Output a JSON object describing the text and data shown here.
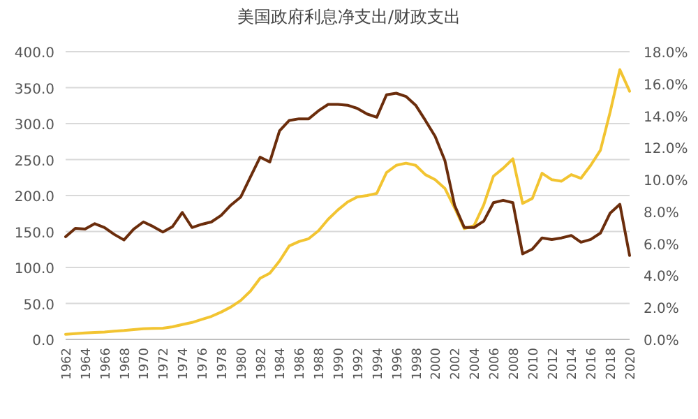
{
  "chart_data": {
    "type": "line",
    "title": "美国政府利息净支出/财政支出",
    "categories": [
      "1962",
      null,
      "1964",
      null,
      "1966",
      null,
      "1968",
      null,
      "1970",
      null,
      "1972",
      null,
      "1974",
      null,
      "1976",
      null,
      "1978",
      null,
      "1980",
      null,
      "1982",
      null,
      "1984",
      null,
      "1986",
      null,
      "1988",
      null,
      "1990",
      null,
      "1992",
      null,
      "1994",
      null,
      "1996",
      null,
      "1998",
      null,
      "2000",
      null,
      "2002",
      null,
      "2004",
      null,
      "2006",
      null,
      "2008",
      null,
      "2010",
      null,
      "2012",
      null,
      "2014",
      null,
      "2016",
      null,
      "2018",
      null,
      "2020"
    ],
    "series": [
      {
        "color": "#f2c431",
        "values": [
          7.1,
          8,
          9,
          9.7,
          10.3,
          11.5,
          12.3,
          13.6,
          14.9,
          15.2,
          15.5,
          17.5,
          20.7,
          23.5,
          27.8,
          32,
          38,
          45,
          54,
          67,
          85,
          92,
          109,
          130,
          136,
          140,
          151,
          167,
          180,
          191,
          198,
          200,
          203,
          232,
          242,
          245,
          242,
          229,
          222,
          210,
          183,
          154,
          158,
          187,
          227,
          238,
          251,
          189,
          196,
          231,
          222,
          220,
          229,
          224,
          242,
          263,
          316,
          375,
          345
        ]
      },
      {
        "color": "#6b2d0c",
        "axis": "y2",
        "values": [
          6.42,
          6.95,
          6.9,
          7.24,
          7.0,
          6.57,
          6.22,
          6.9,
          7.35,
          7.06,
          6.72,
          7.06,
          7.94,
          7.0,
          7.2,
          7.35,
          7.76,
          8.4,
          8.9,
          10.15,
          11.4,
          11.1,
          13.05,
          13.7,
          13.8,
          13.8,
          14.3,
          14.7,
          14.7,
          14.65,
          14.45,
          14.1,
          13.9,
          15.3,
          15.4,
          15.2,
          14.65,
          13.7,
          12.7,
          11.2,
          8.4,
          7.0,
          7.0,
          7.4,
          8.55,
          8.7,
          8.55,
          5.35,
          5.65,
          6.35,
          6.25,
          6.35,
          6.5,
          6.08,
          6.25,
          6.65,
          7.9,
          8.45,
          5.25
        ]
      }
    ],
    "ylim": [
      0,
      400
    ],
    "yticks": [
      {
        "value": 0,
        "label": "0.0"
      },
      {
        "value": 50,
        "label": "50.0"
      },
      {
        "value": 100,
        "label": "100.0"
      },
      {
        "value": 150,
        "label": "150.0"
      },
      {
        "value": 200,
        "label": "200.0"
      },
      {
        "value": 250,
        "label": "250.0"
      },
      {
        "value": 300,
        "label": "300.0"
      },
      {
        "value": 350,
        "label": "350.0"
      },
      {
        "value": 400,
        "label": "400.0"
      }
    ],
    "y2lim": [
      0,
      18
    ],
    "y2ticks": [
      {
        "value": 0,
        "label": "0.0%"
      },
      {
        "value": 2,
        "label": "2.0%"
      },
      {
        "value": 4,
        "label": "4.0%"
      },
      {
        "value": 6,
        "label": "6.0%"
      },
      {
        "value": 8,
        "label": "8.0%"
      },
      {
        "value": 10,
        "label": "10.0%"
      },
      {
        "value": 12,
        "label": "12.0%"
      },
      {
        "value": 14,
        "label": "14.0%"
      },
      {
        "value": 16,
        "label": "16.0%"
      },
      {
        "value": 18,
        "label": "18.0%"
      }
    ],
    "grid": "y"
  }
}
